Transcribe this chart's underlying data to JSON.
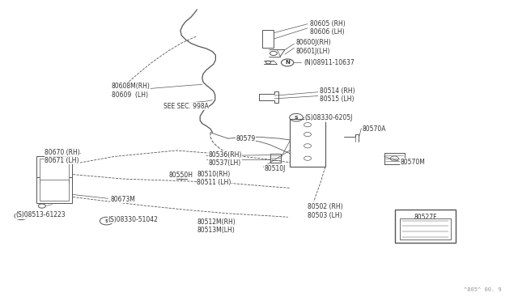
{
  "bg_color": "#ffffff",
  "line_color": "#555555",
  "text_color": "#333333",
  "watermark": "^805^ 00. 9",
  "fig_w": 6.4,
  "fig_h": 3.72,
  "labels": {
    "80605": [
      0.598,
      0.908,
      "80605 (RH)\n80606 (LH)"
    ],
    "80600J": [
      0.572,
      0.845,
      "80600J(RH)\n80601J(LH)"
    ],
    "N08911": [
      0.586,
      0.793,
      "(N)08911-10637"
    ],
    "80608M": [
      0.215,
      0.7,
      "80608M(RH)\n80609  (LH)"
    ],
    "SEESEC": [
      0.315,
      0.648,
      "SEE SEC. 998A"
    ],
    "80514": [
      0.618,
      0.685,
      "80514 (RH)\n80515 (LH)"
    ],
    "S08330_6205J": [
      0.588,
      0.608,
      "(S)08330-6205J"
    ],
    "80570A": [
      0.7,
      0.571,
      "80570A"
    ],
    "80579": [
      0.455,
      0.538,
      "80579"
    ],
    "80536": [
      0.402,
      0.472,
      "80536(RH)\n80537(LH)"
    ],
    "80510J": [
      0.51,
      0.44,
      "80510J"
    ],
    "80570M": [
      0.773,
      0.462,
      "80570M"
    ],
    "80510": [
      0.38,
      0.407,
      "80510(RH)\n80511 (LH)"
    ],
    "80550H": [
      0.326,
      0.418,
      "80550H"
    ],
    "80670": [
      0.085,
      0.48,
      "80670 (RH)\n80671 (LH)"
    ],
    "80673M": [
      0.213,
      0.337,
      "80673M"
    ],
    "S08513": [
      0.03,
      0.285,
      "(S)08513-61223"
    ],
    "S08330_51042": [
      0.208,
      0.27,
      "(S)08330-51042"
    ],
    "80512M": [
      0.38,
      0.247,
      "80512M(RH)\n80513M(LH)"
    ],
    "80502": [
      0.594,
      0.298,
      "80502 (RH)\n80503 (LH)"
    ],
    "80527F": [
      0.81,
      0.308,
      "80527F"
    ]
  }
}
